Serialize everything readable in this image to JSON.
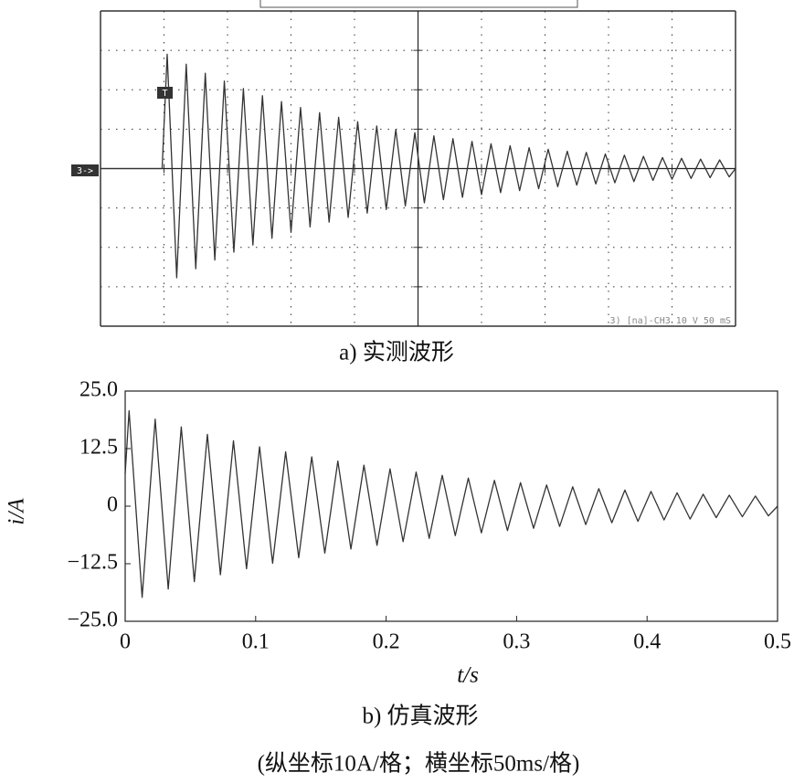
{
  "chart_data": [
    {
      "type": "line",
      "caption": "a) 实测波形",
      "trigger_marker": "T",
      "channel_marker": "3->",
      "status": "3) [na]-CH3 10 V 50 mS",
      "color": "#333333",
      "xlim": [
        0,
        10
      ],
      "ylim": [
        -4,
        4
      ],
      "xticks": [
        0,
        1,
        2,
        3,
        4,
        5,
        6,
        7,
        8,
        9,
        10
      ],
      "yticks": [
        -4,
        -3,
        -2,
        -1,
        0,
        1,
        2,
        3,
        4
      ],
      "x": [
        0,
        0.97,
        1.05,
        1.2,
        1.35,
        1.5,
        1.65,
        1.8,
        1.95,
        2.1,
        2.25,
        2.4,
        2.55,
        2.7,
        2.85,
        3.0,
        3.15,
        3.3,
        3.45,
        3.6,
        3.75,
        3.9,
        4.05,
        4.2,
        4.35,
        4.5,
        4.65,
        4.8,
        4.95,
        5.1,
        5.25,
        5.4,
        5.55,
        5.7,
        5.85,
        6.0,
        6.15,
        6.3,
        6.45,
        6.6,
        6.75,
        6.9,
        7.05,
        7.2,
        7.35,
        7.5,
        7.65,
        7.8,
        7.95,
        8.1,
        8.25,
        8.4,
        8.55,
        8.7,
        8.85,
        9.0,
        9.15,
        9.3,
        9.45,
        9.6,
        9.75,
        9.9,
        10
      ],
      "values": [
        0,
        0,
        2.9,
        -2.77,
        2.65,
        -2.54,
        2.42,
        -2.32,
        2.22,
        -2.12,
        2.03,
        -1.94,
        1.85,
        -1.77,
        1.7,
        -1.62,
        1.55,
        -1.48,
        1.42,
        -1.36,
        1.3,
        -1.24,
        1.19,
        -1.13,
        1.08,
        -1.04,
        0.99,
        -0.95,
        0.91,
        -0.87,
        0.83,
        -0.79,
        0.76,
        -0.73,
        0.69,
        -0.66,
        0.63,
        -0.61,
        0.58,
        -0.56,
        0.53,
        -0.51,
        0.49,
        -0.46,
        0.44,
        -0.42,
        0.41,
        -0.39,
        0.37,
        -0.36,
        0.34,
        -0.33,
        0.31,
        -0.3,
        0.28,
        -0.27,
        0.26,
        -0.25,
        0.24,
        -0.23,
        0.22,
        -0.21,
        0
      ]
    },
    {
      "type": "line",
      "caption": "b) 仿真波形",
      "note": "(纵坐标10A/格；横坐标50ms/格)",
      "xlabel": "t/s",
      "ylabel": "i/A",
      "color": "#333333",
      "xlim": [
        0,
        0.5
      ],
      "ylim": [
        -25,
        25
      ],
      "xticks": [
        0,
        0.1,
        0.2,
        0.3,
        0.4,
        0.5
      ],
      "yticks": [
        {
          "value": -25,
          "label": "−25.0"
        },
        {
          "value": -12.5,
          "label": "−12.5"
        },
        0,
        12.5,
        {
          "value": 25,
          "label": "25.0"
        }
      ],
      "x": [
        0,
        0.003,
        0.013,
        0.023,
        0.033,
        0.043,
        0.053,
        0.063,
        0.073,
        0.083,
        0.093,
        0.103,
        0.113,
        0.123,
        0.133,
        0.143,
        0.153,
        0.163,
        0.173,
        0.183,
        0.193,
        0.203,
        0.213,
        0.223,
        0.233,
        0.243,
        0.253,
        0.263,
        0.273,
        0.283,
        0.293,
        0.303,
        0.313,
        0.323,
        0.333,
        0.343,
        0.353,
        0.363,
        0.373,
        0.383,
        0.393,
        0.403,
        0.413,
        0.423,
        0.433,
        0.443,
        0.453,
        0.463,
        0.473,
        0.483,
        0.493,
        0.5
      ],
      "values": [
        7,
        20.7,
        -19.8,
        18.9,
        -18,
        17.2,
        -16.4,
        15.6,
        -14.9,
        14.2,
        -13.6,
        12.9,
        -12.4,
        11.8,
        -11.2,
        10.7,
        -10.2,
        9.8,
        -9.3,
        8.9,
        -8.5,
        8.1,
        -7.7,
        7.4,
        -7,
        6.7,
        -6.4,
        6.1,
        -5.8,
        5.6,
        -5.3,
        5.1,
        -4.8,
        4.6,
        -4.4,
        4.2,
        -4,
        3.8,
        -3.6,
        3.5,
        -3.3,
        3.2,
        -3,
        2.9,
        -2.8,
        2.6,
        -2.5,
        2.4,
        -2.3,
        2.2,
        -2.1,
        0
      ]
    }
  ]
}
